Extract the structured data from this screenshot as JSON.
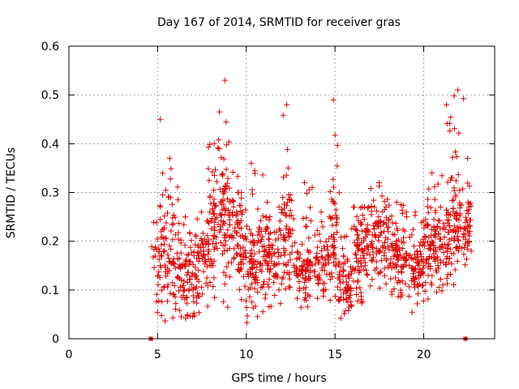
{
  "chart_data": {
    "type": "scatter",
    "title": "Day 167 of 2014, SRMTID for receiver gras",
    "xlabel": "GPS time / hours",
    "ylabel": "SRMTID / TECUs",
    "xlim": [
      0,
      24
    ],
    "ylim": [
      0,
      0.6
    ],
    "xticks": [
      0,
      5,
      10,
      15,
      20
    ],
    "yticks": [
      0,
      0.1,
      0.2,
      0.3,
      0.4,
      0.5,
      0.6
    ],
    "xtick_labels": [
      "0",
      "5",
      "10",
      "15",
      "20"
    ],
    "ytick_labels": [
      "0",
      "0.1",
      "0.2",
      "0.3",
      "0.4",
      "0.5",
      "0.6"
    ],
    "grid": true,
    "marker": "plus",
    "color": "#e00000",
    "endpoint_markers": [
      {
        "x": 4.62,
        "y": 0.0
      },
      {
        "x": 22.35,
        "y": 0.0
      }
    ],
    "clusters": [
      {
        "center": 5.1,
        "width": 0.35,
        "count": 40,
        "base": 0.15,
        "spread": 0.16,
        "peak": 0.45
      },
      {
        "center": 5.7,
        "width": 0.45,
        "count": 60,
        "base": 0.18,
        "spread": 0.12,
        "peak": 0.37
      },
      {
        "center": 6.6,
        "width": 0.6,
        "count": 90,
        "base": 0.12,
        "spread": 0.1,
        "peak": 0.25
      },
      {
        "center": 7.5,
        "width": 0.5,
        "count": 60,
        "base": 0.15,
        "spread": 0.08,
        "peak": 0.26
      },
      {
        "center": 8.2,
        "width": 0.5,
        "count": 70,
        "base": 0.22,
        "spread": 0.12,
        "peak": 0.4
      },
      {
        "center": 8.8,
        "width": 0.35,
        "count": 60,
        "base": 0.25,
        "spread": 0.15,
        "peak": 0.53
      },
      {
        "center": 9.5,
        "width": 0.5,
        "count": 70,
        "base": 0.2,
        "spread": 0.1,
        "peak": 0.3
      },
      {
        "center": 10.3,
        "width": 0.6,
        "count": 90,
        "base": 0.14,
        "spread": 0.09,
        "peak": 0.36
      },
      {
        "center": 11.2,
        "width": 0.6,
        "count": 90,
        "base": 0.17,
        "spread": 0.09,
        "peak": 0.28
      },
      {
        "center": 12.3,
        "width": 0.4,
        "count": 70,
        "base": 0.2,
        "spread": 0.12,
        "peak": 0.48
      },
      {
        "center": 13.3,
        "width": 0.6,
        "count": 90,
        "base": 0.13,
        "spread": 0.06,
        "peak": 0.32
      },
      {
        "center": 14.2,
        "width": 0.4,
        "count": 50,
        "base": 0.15,
        "spread": 0.06,
        "peak": 0.26
      },
      {
        "center": 14.9,
        "width": 0.3,
        "count": 55,
        "base": 0.2,
        "spread": 0.12,
        "peak": 0.49
      },
      {
        "center": 15.6,
        "width": 0.5,
        "count": 70,
        "base": 0.1,
        "spread": 0.07,
        "peak": 0.21
      },
      {
        "center": 16.5,
        "width": 0.6,
        "count": 100,
        "base": 0.18,
        "spread": 0.08,
        "peak": 0.27
      },
      {
        "center": 17.5,
        "width": 0.5,
        "count": 80,
        "base": 0.2,
        "spread": 0.09,
        "peak": 0.32
      },
      {
        "center": 18.5,
        "width": 0.6,
        "count": 90,
        "base": 0.16,
        "spread": 0.08,
        "peak": 0.28
      },
      {
        "center": 19.5,
        "width": 0.6,
        "count": 90,
        "base": 0.15,
        "spread": 0.08,
        "peak": 0.26
      },
      {
        "center": 20.5,
        "width": 0.5,
        "count": 80,
        "base": 0.18,
        "spread": 0.1,
        "peak": 0.34
      },
      {
        "center": 21.3,
        "width": 0.4,
        "count": 70,
        "base": 0.2,
        "spread": 0.12,
        "peak": 0.48
      },
      {
        "center": 21.9,
        "width": 0.35,
        "count": 60,
        "base": 0.24,
        "spread": 0.12,
        "peak": 0.51
      },
      {
        "center": 22.5,
        "width": 0.3,
        "count": 40,
        "base": 0.22,
        "spread": 0.08,
        "peak": 0.37
      }
    ]
  }
}
